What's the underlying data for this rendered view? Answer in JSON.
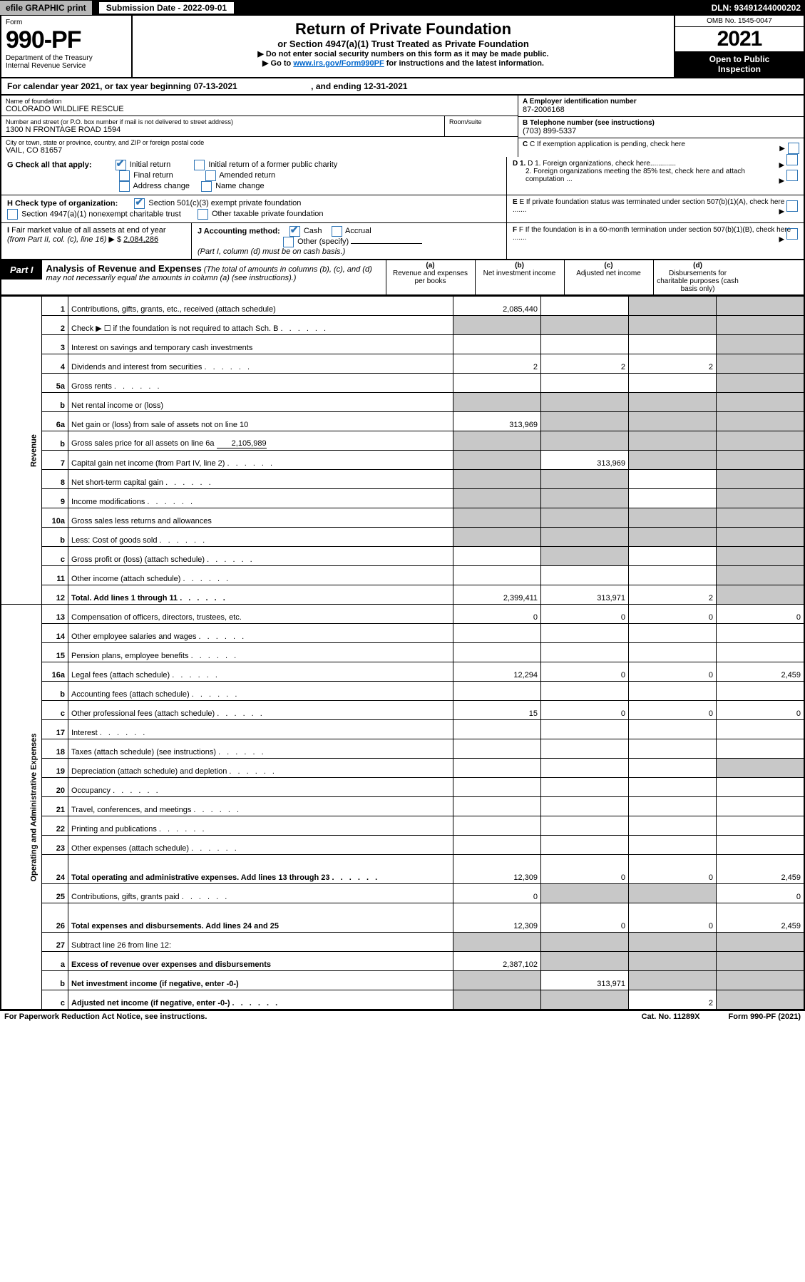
{
  "topbar": {
    "efile": "efile GRAPHIC print",
    "submission": "Submission Date - 2022-09-01",
    "dln": "DLN: 93491244000202"
  },
  "header": {
    "form_label": "Form",
    "form_number": "990-PF",
    "dept": "Department of the Treasury\nInternal Revenue Service",
    "title": "Return of Private Foundation",
    "subtitle": "or Section 4947(a)(1) Trust Treated as Private Foundation",
    "instr1": "▶ Do not enter social security numbers on this form as it may be made public.",
    "instr2_pre": "▶ Go to ",
    "instr2_link": "www.irs.gov/Form990PF",
    "instr2_post": " for instructions and the latest information.",
    "omb": "OMB No. 1545-0047",
    "year": "2021",
    "inspection": "Open to Public\nInspection"
  },
  "calrow": "For calendar year 2021, or tax year beginning 07-13-2021                               , and ending 12-31-2021",
  "foundation": {
    "name_label": "Name of foundation",
    "name": "COLORADO WILDLIFE RESCUE",
    "addr_label": "Number and street (or P.O. box number if mail is not delivered to street address)",
    "addr": "1300 N FRONTAGE ROAD 1594",
    "room_label": "Room/suite",
    "city_label": "City or town, state or province, country, and ZIP or foreign postal code",
    "city": "VAIL, CO  81657"
  },
  "rightcol": {
    "a_label": "A Employer identification number",
    "a_val": "87-2006168",
    "b_label": "B Telephone number (see instructions)",
    "b_val": "(703) 899-5337",
    "c_label": "C If exemption application is pending, check here",
    "d1": "D 1. Foreign organizations, check here.............",
    "d2": "2. Foreign organizations meeting the 85% test, check here and attach computation ...",
    "e": "E  If private foundation status was terminated under section 507(b)(1)(A), check here .......",
    "f": "F  If the foundation is in a 60-month termination under section 507(b)(1)(B), check here ......."
  },
  "g": {
    "label": "G Check all that apply:",
    "items": [
      "Initial return",
      "Initial return of a former public charity",
      "Final return",
      "Amended return",
      "Address change",
      "Name change"
    ],
    "checked": [
      true,
      false,
      false,
      false,
      false,
      false
    ]
  },
  "h": {
    "label": "H Check type of organization:",
    "opt1": "Section 501(c)(3) exempt private foundation",
    "opt2": "Section 4947(a)(1) nonexempt charitable trust",
    "opt3": "Other taxable private foundation",
    "checked1": true
  },
  "i": {
    "label": "I Fair market value of all assets at end of year (from Part II, col. (c), line 16)  ▶ $",
    "val": "2,084,286"
  },
  "j": {
    "label": "J Accounting method:",
    "cash": "Cash",
    "accrual": "Accrual",
    "other": "Other (specify)",
    "cash_checked": true,
    "note": "(Part I, column (d) must be on cash basis.)"
  },
  "part1": {
    "label": "Part I",
    "title": "Analysis of Revenue and Expenses",
    "note": " (The total of amounts in columns (b), (c), and (d) may not necessarily equal the amounts in column (a) (see instructions).)",
    "col_a": "(a)   Revenue and expenses per books",
    "col_b": "(b)   Net investment income",
    "col_c": "(c)   Adjusted net income",
    "col_d": "(d)  Disbursements for charitable purposes (cash basis only)"
  },
  "sidelabels": {
    "rev": "Revenue",
    "exp": "Operating and Administrative Expenses"
  },
  "rows": [
    {
      "n": "1",
      "d": "Contributions, gifts, grants, etc., received (attach schedule)",
      "a": "2,085,440",
      "bgrey": false,
      "cgrey": true,
      "dgrey": true,
      "agrey": false
    },
    {
      "n": "2",
      "d": "Check ▶ ☐ if the foundation is not required to attach Sch. B",
      "allgrey": true,
      "descbold": false,
      "dotted": true
    },
    {
      "n": "3",
      "d": "Interest on savings and temporary cash investments",
      "a": "",
      "b": "",
      "c": "",
      "dgrey": true
    },
    {
      "n": "4",
      "d": "Dividends and interest from securities",
      "a": "2",
      "b": "2",
      "c": "2",
      "dgrey": true,
      "dotted": true
    },
    {
      "n": "5a",
      "d": "Gross rents",
      "a": "",
      "b": "",
      "c": "",
      "dgrey": true,
      "dotted": true
    },
    {
      "n": "b",
      "d": "Net rental income or (loss)",
      "allgrey": true,
      "underline": true
    },
    {
      "n": "6a",
      "d": "Net gain or (loss) from sale of assets not on line 10",
      "a": "313,969",
      "bgrey": true,
      "cgrey": true,
      "dgrey": true
    },
    {
      "n": "b",
      "d": "Gross sales price for all assets on line 6a",
      "inline_val": "2,105,989",
      "allgrey": true
    },
    {
      "n": "7",
      "d": "Capital gain net income (from Part IV, line 2)",
      "agrey": true,
      "b": "313,969",
      "cgrey": true,
      "dgrey": true,
      "dotted": true
    },
    {
      "n": "8",
      "d": "Net short-term capital gain",
      "agrey": true,
      "bgrey": true,
      "c": "",
      "dgrey": true,
      "dotted": true
    },
    {
      "n": "9",
      "d": "Income modifications",
      "agrey": true,
      "bgrey": true,
      "c": "",
      "dgrey": true,
      "dotted": true
    },
    {
      "n": "10a",
      "d": "Gross sales less returns and allowances",
      "allgrey": true,
      "underline": true
    },
    {
      "n": "b",
      "d": "Less: Cost of goods sold",
      "allgrey": true,
      "underline": true,
      "dotted": true
    },
    {
      "n": "c",
      "d": "Gross profit or (loss) (attach schedule)",
      "a": "",
      "bgrey": true,
      "c": "",
      "dgrey": true,
      "dotted": true
    },
    {
      "n": "11",
      "d": "Other income (attach schedule)",
      "a": "",
      "b": "",
      "c": "",
      "dgrey": true,
      "dotted": true
    },
    {
      "n": "12",
      "d": "Total. Add lines 1 through 11",
      "a": "2,399,411",
      "b": "313,971",
      "c": "2",
      "dgrey": true,
      "bold": true,
      "dotted": true
    },
    {
      "n": "13",
      "d": "Compensation of officers, directors, trustees, etc.",
      "a": "0",
      "b": "0",
      "c": "0",
      "dd": "0"
    },
    {
      "n": "14",
      "d": "Other employee salaries and wages",
      "a": "",
      "b": "",
      "c": "",
      "dd": "",
      "dotted": true
    },
    {
      "n": "15",
      "d": "Pension plans, employee benefits",
      "a": "",
      "b": "",
      "c": "",
      "dd": "",
      "dotted": true
    },
    {
      "n": "16a",
      "d": "Legal fees (attach schedule)",
      "a": "12,294",
      "b": "0",
      "c": "0",
      "dd": "2,459",
      "dotted": true
    },
    {
      "n": "b",
      "d": "Accounting fees (attach schedule)",
      "a": "",
      "b": "",
      "c": "",
      "dd": "",
      "dotted": true
    },
    {
      "n": "c",
      "d": "Other professional fees (attach schedule)",
      "a": "15",
      "b": "0",
      "c": "0",
      "dd": "0",
      "dotted": true
    },
    {
      "n": "17",
      "d": "Interest",
      "a": "",
      "b": "",
      "c": "",
      "dd": "",
      "dotted": true
    },
    {
      "n": "18",
      "d": "Taxes (attach schedule) (see instructions)",
      "a": "",
      "b": "",
      "c": "",
      "dd": "",
      "dotted": true
    },
    {
      "n": "19",
      "d": "Depreciation (attach schedule) and depletion",
      "a": "",
      "b": "",
      "c": "",
      "dgrey": true,
      "dotted": true
    },
    {
      "n": "20",
      "d": "Occupancy",
      "a": "",
      "b": "",
      "c": "",
      "dd": "",
      "dotted": true
    },
    {
      "n": "21",
      "d": "Travel, conferences, and meetings",
      "a": "",
      "b": "",
      "c": "",
      "dd": "",
      "dotted": true
    },
    {
      "n": "22",
      "d": "Printing and publications",
      "a": "",
      "b": "",
      "c": "",
      "dd": "",
      "dotted": true
    },
    {
      "n": "23",
      "d": "Other expenses (attach schedule)",
      "a": "",
      "b": "",
      "c": "",
      "dd": "",
      "dotted": true
    },
    {
      "n": "24",
      "d": "Total operating and administrative expenses. Add lines 13 through 23",
      "a": "12,309",
      "b": "0",
      "c": "0",
      "dd": "2,459",
      "bold": true,
      "dotted": true,
      "tall": true
    },
    {
      "n": "25",
      "d": "Contributions, gifts, grants paid",
      "a": "0",
      "bgrey": true,
      "cgrey": true,
      "dd": "0",
      "dotted": true
    },
    {
      "n": "26",
      "d": "Total expenses and disbursements. Add lines 24 and 25",
      "a": "12,309",
      "b": "0",
      "c": "0",
      "dd": "2,459",
      "bold": true,
      "tall": true
    },
    {
      "n": "27",
      "d": "Subtract line 26 from line 12:",
      "allgrey": true,
      "descbold": false
    },
    {
      "n": "a",
      "d": "Excess of revenue over expenses and disbursements",
      "a": "2,387,102",
      "bgrey": true,
      "cgrey": true,
      "dgrey": true,
      "bold": true
    },
    {
      "n": "b",
      "d": "Net investment income (if negative, enter -0-)",
      "agrey": true,
      "b": "313,971",
      "cgrey": true,
      "dgrey": true,
      "bold": true
    },
    {
      "n": "c",
      "d": "Adjusted net income (if negative, enter -0-)",
      "agrey": true,
      "bgrey": true,
      "c": "2",
      "dgrey": true,
      "bold": true,
      "dotted": true
    }
  ],
  "footer": {
    "left": "For Paperwork Reduction Act Notice, see instructions.",
    "mid": "Cat. No. 11289X",
    "right": "Form 990-PF (2021)"
  },
  "colors": {
    "link": "#0066cc",
    "check": "#2e75b6",
    "grey": "#c8c8c8"
  }
}
